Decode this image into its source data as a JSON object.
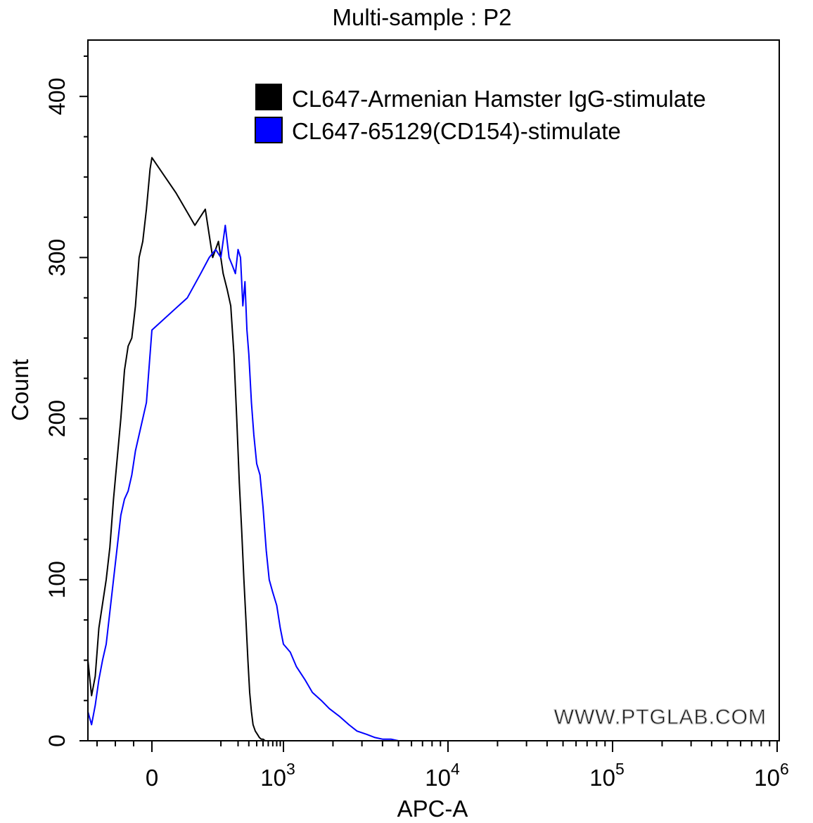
{
  "chart_data": {
    "type": "line",
    "title": "Multi-sample : P2",
    "xlabel": "APC-A",
    "ylabel": "Count",
    "x_scale": "biexponential",
    "xlim": [
      -350,
      1000000
    ],
    "ylim": [
      0,
      435
    ],
    "y_ticks": [
      0,
      100,
      200,
      300,
      400
    ],
    "x_ticks": [
      {
        "value": 0,
        "label": "0",
        "exp": ""
      },
      {
        "value": 1000,
        "label": "10",
        "exp": "3"
      },
      {
        "value": 10000,
        "label": "10",
        "exp": "4"
      },
      {
        "value": 100000,
        "label": "10",
        "exp": "5"
      },
      {
        "value": 1000000,
        "label": "10",
        "exp": "6"
      }
    ],
    "legend_position": "top-right",
    "watermark": "WWW.PTGLAB.COM",
    "series": [
      {
        "name": "CL647-Armenian Hamster IgG-stimulate",
        "color": "#000000",
        "x": [
          -350,
          -330,
          -310,
          -290,
          -270,
          -250,
          -230,
          -210,
          -190,
          -170,
          -150,
          -130,
          -110,
          -90,
          -70,
          -50,
          -30,
          -10,
          0,
          10,
          30,
          50,
          70,
          90,
          110,
          130,
          150,
          170,
          190,
          210,
          230,
          250,
          270,
          290,
          310,
          330,
          350,
          380,
          410,
          440,
          470,
          500,
          540,
          580,
          620,
          660,
          700
        ],
        "values": [
          50,
          28,
          40,
          70,
          85,
          100,
          120,
          150,
          175,
          200,
          230,
          245,
          250,
          270,
          300,
          310,
          330,
          355,
          362,
          340,
          320,
          330,
          300,
          310,
          290,
          280,
          270,
          240,
          200,
          160,
          130,
          100,
          75,
          50,
          30,
          18,
          10,
          6,
          4,
          2,
          1,
          1,
          0,
          0,
          0,
          0,
          0
        ]
      },
      {
        "name": "CL647-65129(CD154)-stimulate",
        "color": "#0000ff",
        "x": [
          -350,
          -330,
          -310,
          -290,
          -270,
          -250,
          -230,
          -210,
          -190,
          -170,
          -150,
          -130,
          -110,
          -90,
          -70,
          -50,
          -30,
          -10,
          0,
          20,
          40,
          60,
          80,
          100,
          120,
          140,
          160,
          180,
          200,
          220,
          240,
          260,
          280,
          300,
          330,
          360,
          400,
          450,
          500,
          560,
          620,
          700,
          800,
          900,
          1000,
          1100,
          1200,
          1350,
          1500,
          1700,
          1900,
          2200,
          2500,
          2800,
          3200,
          3600,
          4000,
          4500,
          5000,
          5600,
          6000
        ],
        "values": [
          18,
          10,
          22,
          38,
          50,
          60,
          80,
          100,
          120,
          140,
          150,
          155,
          165,
          180,
          190,
          200,
          210,
          240,
          255,
          275,
          290,
          300,
          305,
          300,
          320,
          300,
          295,
          290,
          305,
          300,
          270,
          285,
          255,
          240,
          210,
          190,
          172,
          165,
          145,
          118,
          100,
          92,
          84,
          70,
          60,
          55,
          46,
          38,
          30,
          25,
          20,
          15,
          10,
          6,
          4,
          2,
          1,
          1,
          0,
          0,
          0
        ]
      }
    ]
  }
}
